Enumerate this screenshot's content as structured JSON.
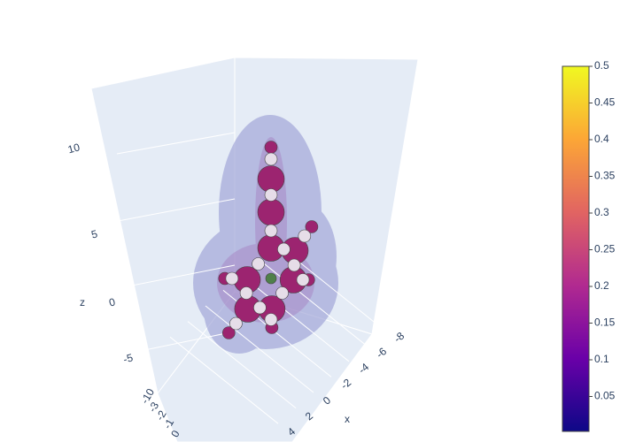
{
  "chart_data": {
    "type": "scatter3d",
    "xlabel": "x",
    "zlabel": "z",
    "xticks": [
      -8,
      -6,
      -4,
      -2,
      0,
      2,
      4
    ],
    "yticks": [
      -10,
      -3,
      -2,
      -1,
      0
    ],
    "zticks": [
      -5,
      0,
      5,
      10
    ],
    "series": [
      {
        "color": "#9c2470",
        "size": 15,
        "x": [
          0,
          0,
          0,
          -3,
          3,
          -2.8,
          2.9,
          -0.1
        ],
        "z": [
          7.5,
          5,
          2.3,
          2.1,
          -0.1,
          -0.1,
          -2.3,
          -2.3
        ]
      },
      {
        "color": "#9c2470",
        "size": 7,
        "x": [
          0,
          -5.1,
          5.8,
          -4.7,
          5.3,
          -0.1
        ],
        "z": [
          9.9,
          3.9,
          0,
          -0.1,
          -4.1,
          -3.7
        ]
      },
      {
        "color": "#e6dde8",
        "size": 7,
        "x": [
          0,
          0,
          0,
          -4.2,
          1.6,
          -1.6,
          4.9,
          -4,
          -2.9,
          3.1,
          -1.4,
          1.4,
          0,
          4.4
        ],
        "z": [
          9,
          6.3,
          3.6,
          3.2,
          1.1,
          2.2,
          0,
          -0.1,
          1,
          -1.1,
          -1.1,
          -2.2,
          -3.1,
          -3.4
        ]
      },
      {
        "color": "#4f7f4a",
        "size": 6,
        "x": [
          0
        ],
        "z": [
          0
        ]
      }
    ],
    "colorbar": {
      "lim": [
        0,
        0.5
      ],
      "ticks": [
        0.05,
        0.1,
        0.15,
        0.2,
        0.25,
        0.3,
        0.35,
        0.4,
        0.45,
        0.5
      ]
    }
  }
}
